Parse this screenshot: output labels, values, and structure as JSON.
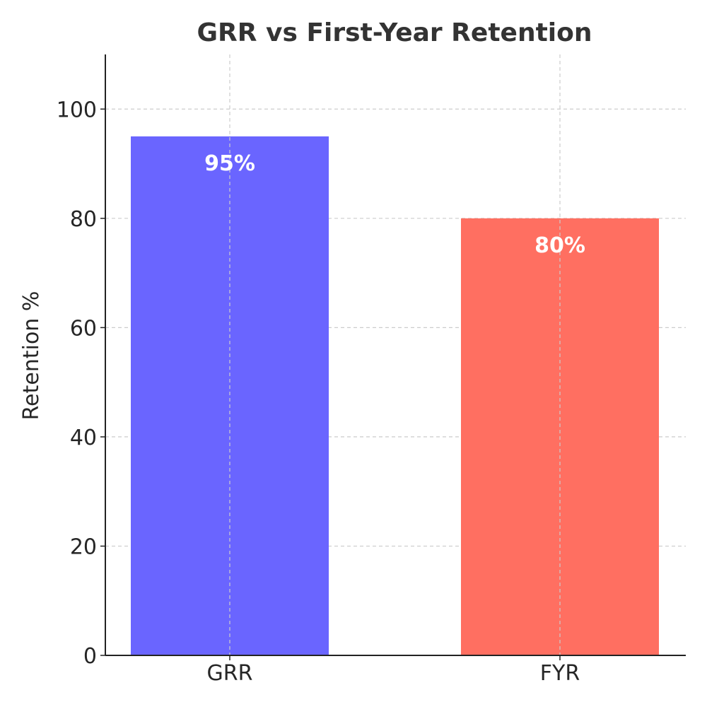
{
  "chart_data": {
    "type": "bar",
    "title": "GRR vs First-Year Retention",
    "xlabel": "",
    "ylabel": "Retention %",
    "categories": [
      "GRR",
      "FYR"
    ],
    "values": [
      95,
      80
    ],
    "data_labels": [
      "95%",
      "80%"
    ],
    "colors": [
      "#6a65ff",
      "#ff6f61"
    ],
    "ylim": [
      0,
      110
    ],
    "yticks": [
      0,
      20,
      40,
      60,
      80,
      100
    ],
    "grid": true
  }
}
